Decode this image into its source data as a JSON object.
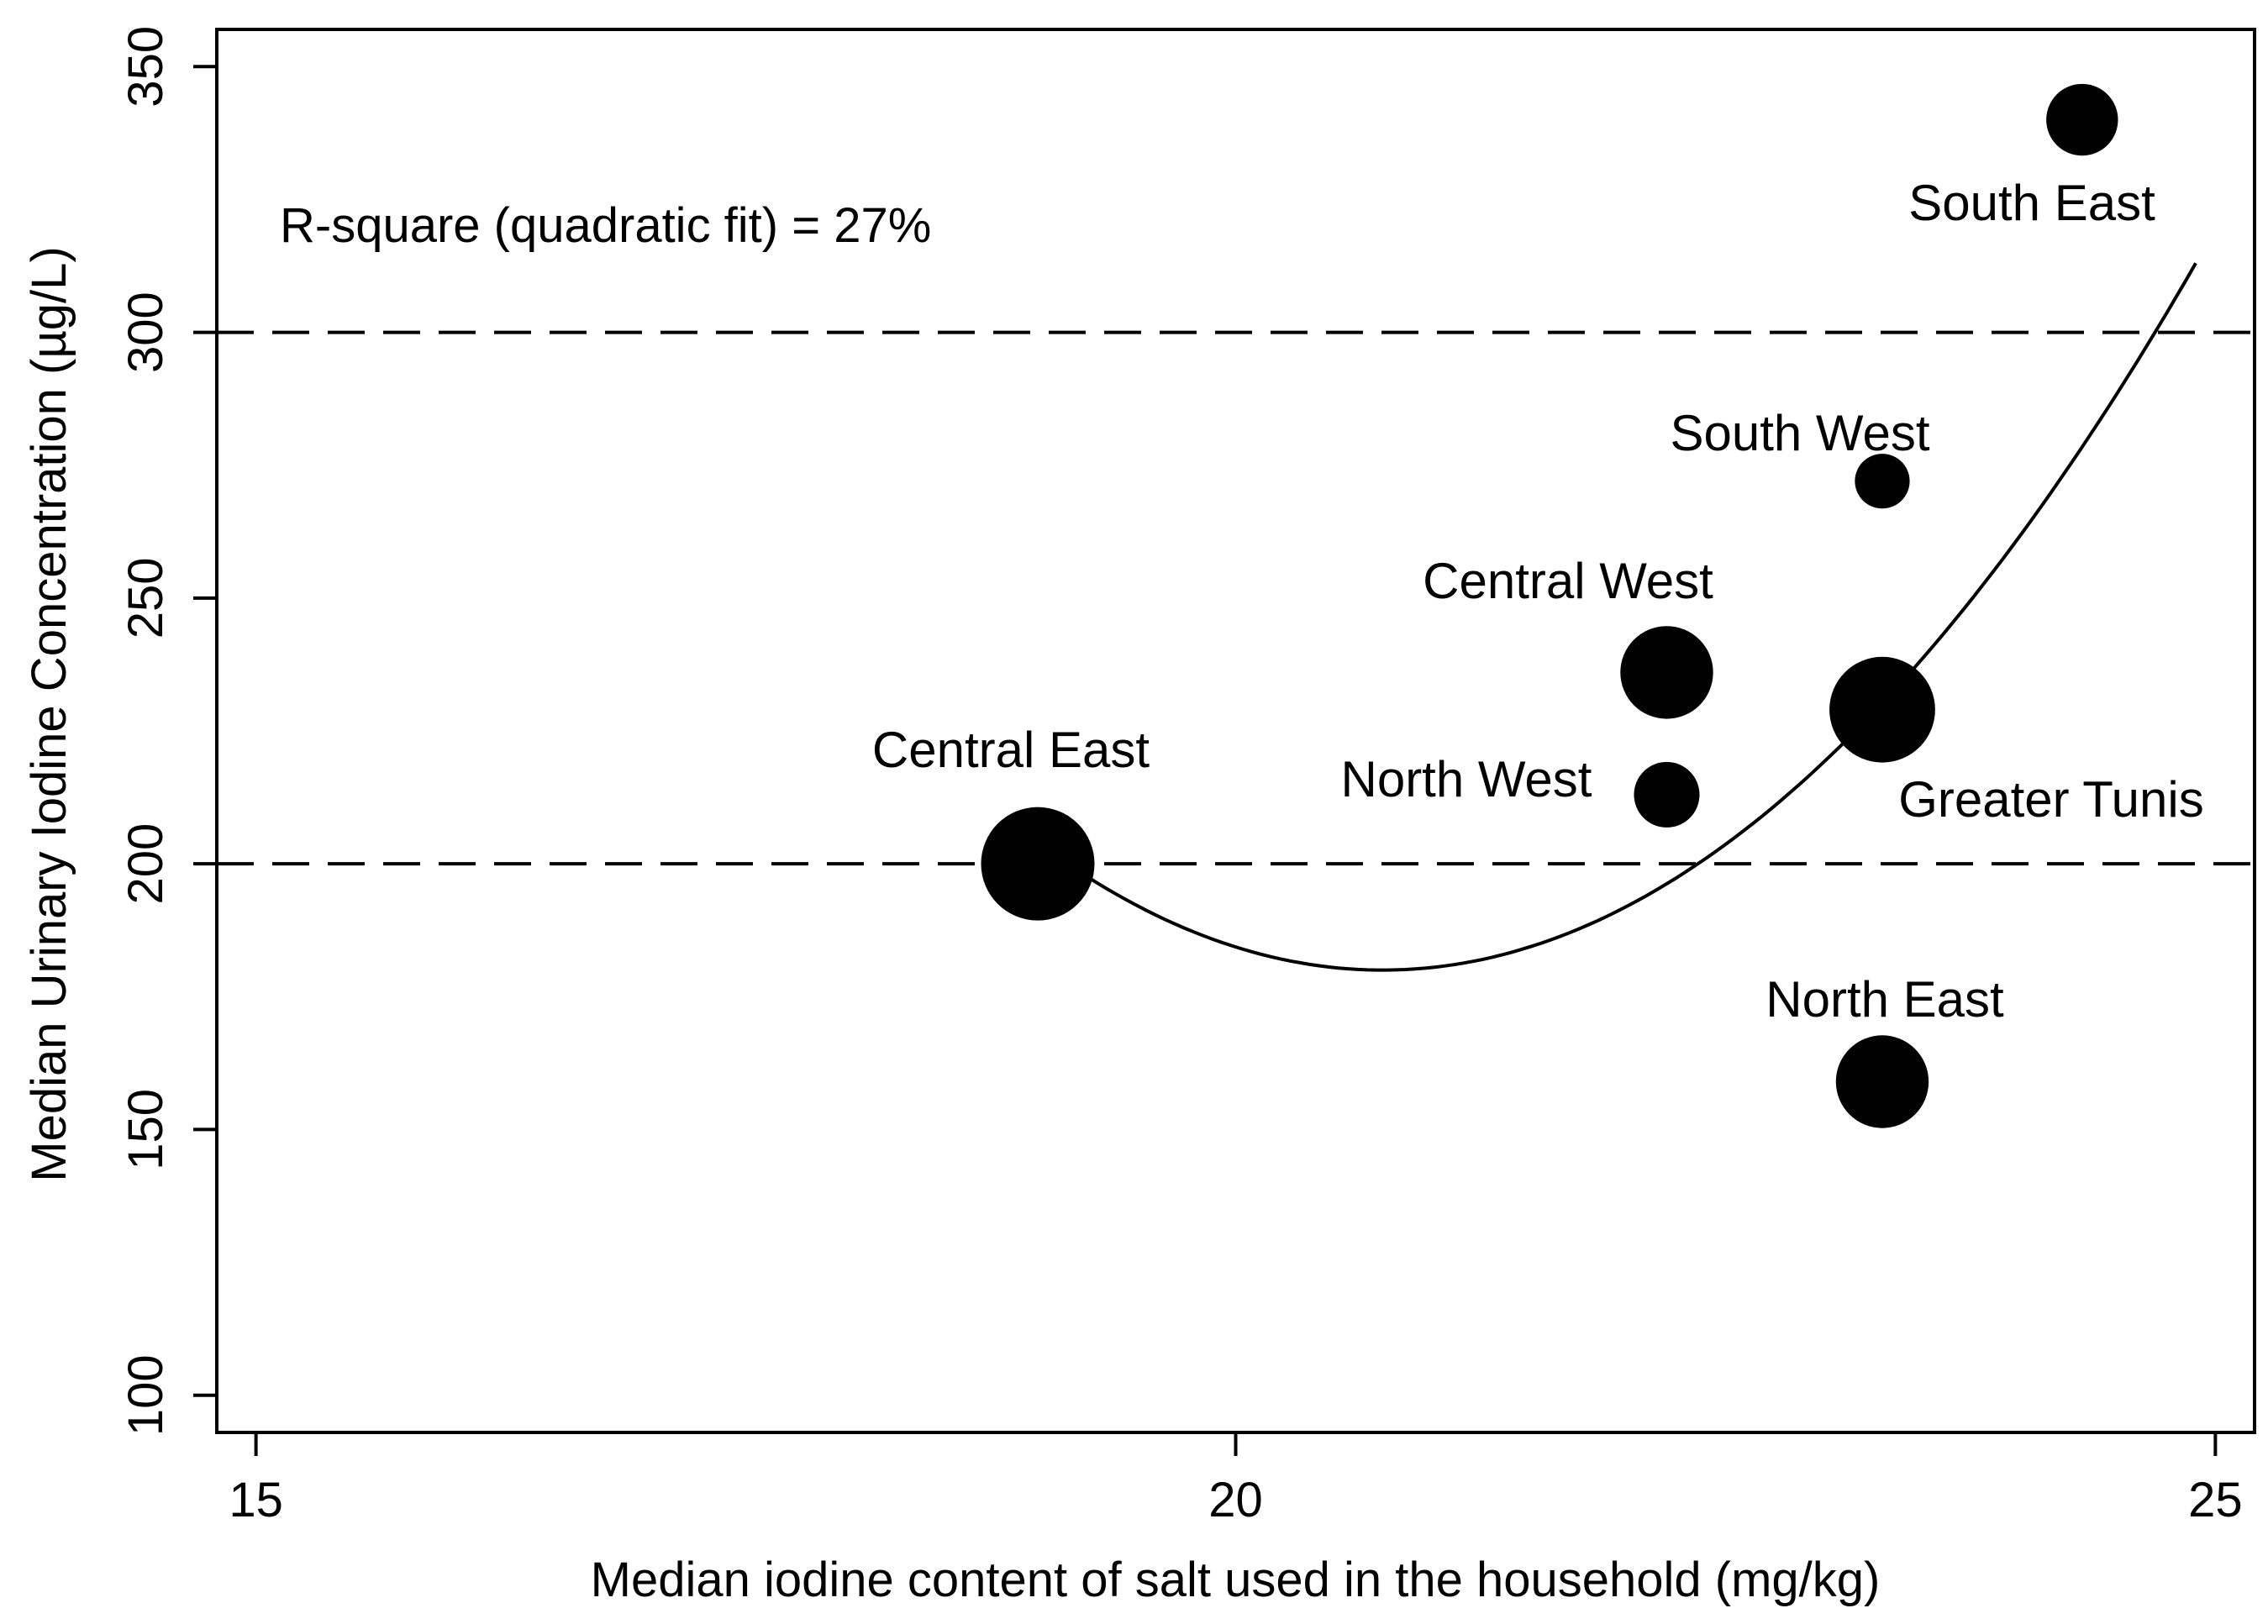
{
  "chart_data": {
    "type": "scatter",
    "title": "",
    "xlabel": "Median iodine content of salt used in the household (mg/kg)",
    "ylabel": "Median Urinary Iodine Concentration (µg/L)",
    "xlim": [
      14.8,
      25.2
    ],
    "ylim": [
      93,
      357
    ],
    "x_ticks": [
      15,
      20,
      25
    ],
    "y_ticks": [
      100,
      150,
      200,
      250,
      300,
      350
    ],
    "grid": false,
    "legend": "none",
    "annotation": "R-square (quadratic fit) = 27%",
    "reference_lines": [
      {
        "y": 200,
        "style": "dashed"
      },
      {
        "y": 300,
        "style": "dashed"
      }
    ],
    "fit_curve": {
      "type": "quadratic",
      "x_range": [
        19.0,
        24.9
      ],
      "vertex": {
        "x": 20.75,
        "y": 180
      },
      "end": {
        "x": 24.9,
        "y": 313
      }
    },
    "points": [
      {
        "name": "Central East",
        "x": 18.99,
        "y": 200,
        "size": 3.0
      },
      {
        "name": "North West",
        "x": 22.2,
        "y": 213,
        "size": 1.0
      },
      {
        "name": "Central West",
        "x": 22.2,
        "y": 236,
        "size": 2.0
      },
      {
        "name": "Greater Tunis",
        "x": 23.3,
        "y": 229,
        "size": 2.6
      },
      {
        "name": "South West",
        "x": 23.3,
        "y": 272,
        "size": 0.7
      },
      {
        "name": "North East",
        "x": 23.3,
        "y": 159,
        "size": 2.0
      },
      {
        "name": "South East",
        "x": 24.32,
        "y": 340,
        "size": 1.2
      }
    ]
  }
}
